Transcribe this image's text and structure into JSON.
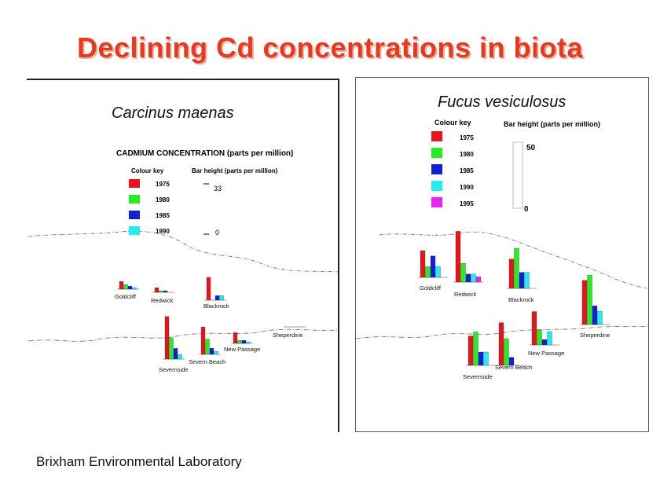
{
  "title": "Declining Cd concentrations in biota",
  "footer": "Brixham Environmental Laboratory",
  "colors": {
    "1975": "#e8141a",
    "1980": "#22ee22",
    "1985": "#1020d8",
    "1990": "#22eef0",
    "1995": "#ee22ee",
    "title": "#e53a1e"
  },
  "left_panel": {
    "species": "Carcinus maenas",
    "heading": "CADMIUM CONCENTRATION (parts per million)",
    "colour_key_label": "Colour key",
    "bar_height_label": "Bar height (parts per million)",
    "scale_top": "33",
    "scale_bottom": "0"
  },
  "right_panel": {
    "species": "Fucus vesiculosus",
    "colour_key_label": "Colour key",
    "bar_height_label": "Bar height (parts per million)",
    "scale_top": "50",
    "scale_bottom": "0"
  },
  "chart_data": [
    {
      "type": "bar",
      "title": "CADMIUM CONCENTRATION (parts per million)",
      "subtitle": "Carcinus maenas",
      "ylim": [
        0,
        33
      ],
      "series_keys": [
        "1975",
        "1980",
        "1985",
        "1990"
      ],
      "sites": [
        {
          "name": "Goldcliff",
          "values": [
            5,
            3,
            2,
            1
          ]
        },
        {
          "name": "Redwick",
          "values": [
            3,
            1,
            1,
            0
          ]
        },
        {
          "name": "Blackrock",
          "values": [
            15,
            0,
            3,
            3
          ]
        },
        {
          "name": "Severnside",
          "values": [
            28,
            14,
            7,
            3
          ]
        },
        {
          "name": "Severn Beach",
          "values": [
            18,
            10,
            4,
            2
          ]
        },
        {
          "name": "New Passage",
          "values": [
            7,
            2,
            2,
            1
          ]
        },
        {
          "name": "Sheperdine",
          "values": [
            0,
            0,
            0,
            0
          ]
        }
      ]
    },
    {
      "type": "bar",
      "title": "Fucus vesiculosus",
      "ylim": [
        0,
        50
      ],
      "series_keys": [
        "1975",
        "1980",
        "1985",
        "1990",
        "1995"
      ],
      "sites": [
        {
          "name": "Goldcliff",
          "values": [
            20,
            8,
            16,
            8,
            0
          ]
        },
        {
          "name": "Redwick",
          "values": [
            38,
            14,
            6,
            6,
            4
          ]
        },
        {
          "name": "Blackrock",
          "values": [
            22,
            30,
            12,
            12,
            0
          ]
        },
        {
          "name": "Sheperdine",
          "values": [
            33,
            37,
            14,
            10,
            0
          ]
        },
        {
          "name": "New Passage",
          "values": [
            25,
            11,
            4,
            10,
            0
          ]
        },
        {
          "name": "Severn Beach",
          "values": [
            32,
            20,
            6,
            0,
            0
          ]
        },
        {
          "name": "Severnside",
          "values": [
            22,
            25,
            10,
            10,
            0
          ]
        }
      ]
    }
  ]
}
